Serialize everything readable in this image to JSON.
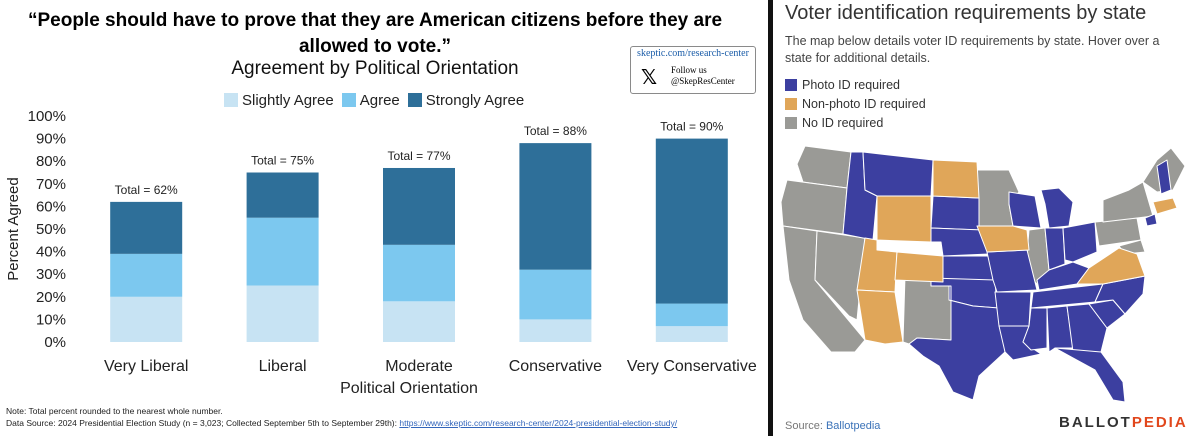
{
  "left_panel": {
    "quote": "“People should have to prove that they are American citizens before they are allowed to vote.”",
    "subtitle": "Agreement by Political Orientation",
    "brand": {
      "url": "skeptic.com/research-center",
      "x_logo": "𝕏",
      "follow_line1": "Follow us",
      "follow_line2": "@SkepResCenter"
    },
    "note": "Note: Total percent rounded to the nearest whole number.",
    "source_prefix": "Data Source: 2024 Presidential Election Study (n = 3,023; Collected September 5th to September 29th): ",
    "source_link": "https://www.skeptic.com/research-center/2024-presidential-election-study/"
  },
  "chart_data": [
    {
      "type": "bar",
      "stacked": true,
      "xlabel": "Political Orientation",
      "ylabel": "Percent Agreed",
      "ylim": [
        0,
        100
      ],
      "yticks": [
        "0%",
        "10%",
        "20%",
        "30%",
        "40%",
        "50%",
        "60%",
        "70%",
        "80%",
        "90%",
        "100%"
      ],
      "categories": [
        "Very Liberal",
        "Liberal",
        "Moderate",
        "Conservative",
        "Very Conservative"
      ],
      "series": [
        {
          "name": "Slightly Agree",
          "color": "#c7e3f3",
          "values": [
            20,
            25,
            18,
            10,
            7
          ]
        },
        {
          "name": "Agree",
          "color": "#7cc8ef",
          "values": [
            19,
            30,
            25,
            22,
            10
          ]
        },
        {
          "name": "Strongly Agree",
          "color": "#2e6f99",
          "values": [
            23,
            20,
            34,
            56,
            73
          ]
        }
      ],
      "totals": [
        "Total = 62%",
        "Total = 75%",
        "Total = 77%",
        "Total = 88%",
        "Total = 90%"
      ]
    }
  ],
  "right_panel": {
    "title": "Voter identification requirements by state",
    "description": "The map below details voter ID requirements by state. Hover over a state for additional details.",
    "legend": [
      {
        "label": "Photo ID required",
        "color": "#3c3fa0"
      },
      {
        "label": "Non-photo ID required",
        "color": "#e0a659"
      },
      {
        "label": "No ID required",
        "color": "#9a9a96"
      }
    ],
    "source_label": "Source: ",
    "source_link": "Ballotpedia",
    "logo_part1": "BALLOT",
    "logo_part2": "PEDIA"
  }
}
